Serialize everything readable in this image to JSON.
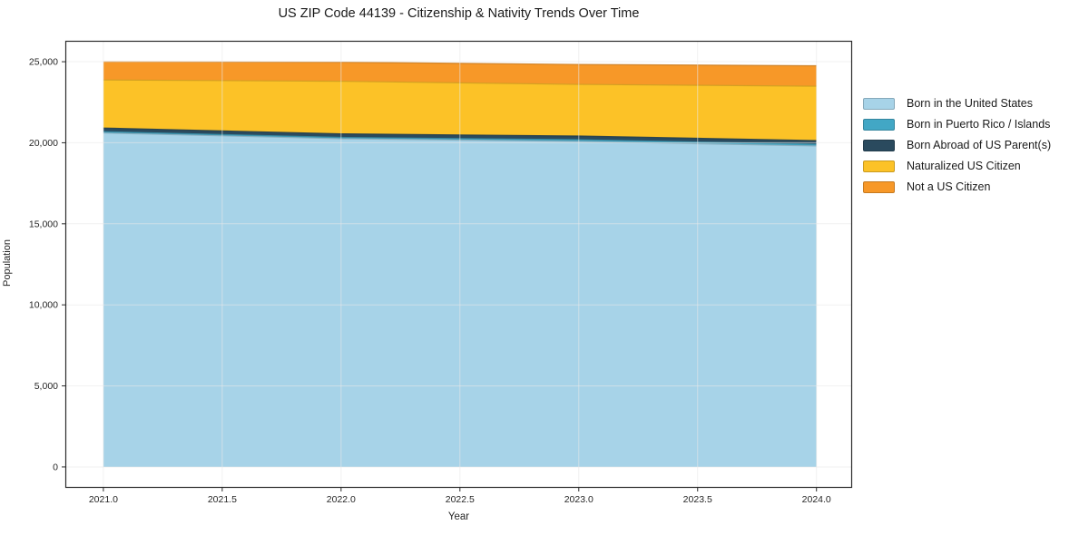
{
  "chart_data": {
    "type": "area",
    "stacked": true,
    "title": "US ZIP Code 44139 - Citizenship & Nativity Trends Over Time",
    "xlabel": "Year",
    "ylabel": "Population",
    "x": [
      2021,
      2022,
      2023,
      2024
    ],
    "series": [
      {
        "id": "born-us",
        "name": "Born in the United States",
        "color": "#A7D3E8",
        "values": [
          20600,
          20250,
          20080,
          19800
        ]
      },
      {
        "id": "born-pr-islands",
        "name": "Born in Puerto Rico / Islands",
        "color": "#42A7C5",
        "values": [
          85,
          80,
          110,
          110
        ]
      },
      {
        "id": "born-abroad",
        "name": "Born Abroad of US Parent(s)",
        "color": "#2A4A5E",
        "values": [
          225,
          220,
          225,
          225
        ]
      },
      {
        "id": "naturalized",
        "name": "Naturalized US Citizen",
        "color": "#FCC227",
        "values": [
          2965,
          3245,
          3185,
          3355
        ]
      },
      {
        "id": "not-citizen",
        "name": "Not a US Citizen",
        "color": "#F79828",
        "values": [
          1125,
          1175,
          1230,
          1260
        ]
      }
    ],
    "x_ticks": {
      "values": [
        2021.0,
        2021.5,
        2022.0,
        2022.5,
        2023.0,
        2023.5,
        2024.0
      ],
      "labels": [
        "2021.0",
        "2021.5",
        "2022.0",
        "2022.5",
        "2023.0",
        "2023.5",
        "2024.0"
      ]
    },
    "y_ticks": {
      "values": [
        0,
        5000,
        10000,
        15000,
        20000,
        25000
      ],
      "labels": [
        "0",
        "5,000",
        "10,000",
        "15,000",
        "20,000",
        "25,000"
      ]
    },
    "xlim": [
      2020.84,
      2024.15
    ],
    "ylim": [
      -1290,
      26290
    ],
    "grid": true,
    "legend_position": "right"
  },
  "colors": {
    "background": "#ffffff",
    "text": "#262626",
    "spine": "#2b2b2b",
    "grid": "#e8e8e8"
  }
}
